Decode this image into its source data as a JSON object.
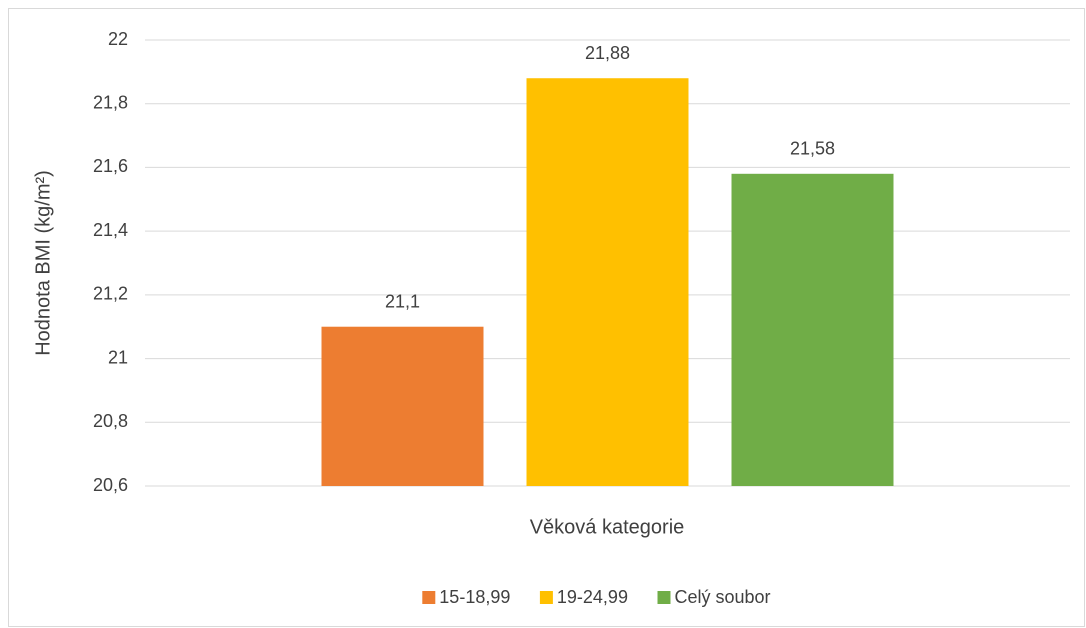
{
  "chart_data": {
    "type": "bar",
    "y_label": "Hodnota BMI (kg/m²)",
    "x_label": "Věková kategorie",
    "categories": [
      null
    ],
    "series": [
      {
        "name": "15-18,99",
        "color": "#ed7d31",
        "values": [
          21.1
        ],
        "value_labels": [
          "21,1"
        ]
      },
      {
        "name": "19-24,99",
        "color": "#ffc000",
        "values": [
          21.88
        ],
        "value_labels": [
          "21,88"
        ]
      },
      {
        "name": "Celý soubor",
        "color": "#70ad47",
        "values": [
          21.58
        ],
        "value_labels": [
          "21,58"
        ]
      }
    ],
    "ylim": [
      20.6,
      22
    ],
    "yticks": [
      {
        "value": 20.6,
        "label": "20,6"
      },
      {
        "value": 20.8,
        "label": "20,8"
      },
      21,
      {
        "value": 21.2,
        "label": "21,2"
      },
      {
        "value": 21.4,
        "label": "21,4"
      },
      {
        "value": 21.6,
        "label": "21,6"
      },
      {
        "value": 21.8,
        "label": "21,8"
      },
      22
    ],
    "grid": true,
    "legend": "bottom"
  }
}
